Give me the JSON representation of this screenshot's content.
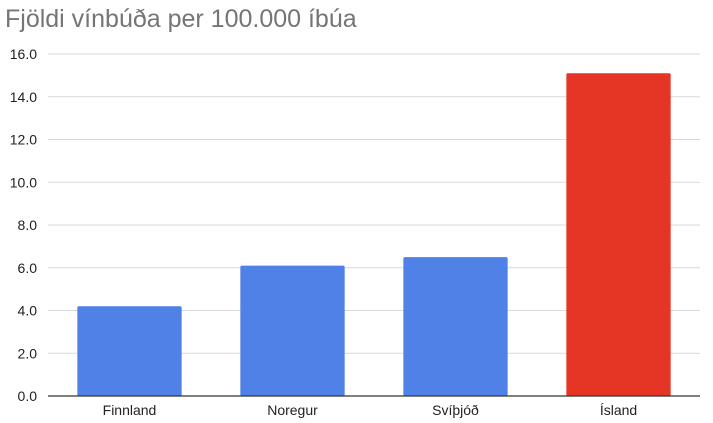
{
  "chart_data": {
    "type": "bar",
    "title": "Fjöldi vínbúða per 100.000 íbúa",
    "xlabel": "",
    "ylabel": "",
    "categories": [
      "Finnland",
      "Noregur",
      "Svíþjóð",
      "Ísland"
    ],
    "values": [
      4.2,
      6.1,
      6.5,
      15.1
    ],
    "colors": [
      "#4f81e7",
      "#4f81e7",
      "#4f81e7",
      "#e53524"
    ],
    "ylim": [
      0,
      16
    ],
    "yticks": [
      "0.0",
      "2.0",
      "4.0",
      "6.0",
      "8.0",
      "10.0",
      "12.0",
      "14.0",
      "16.0"
    ],
    "grid": true,
    "legend": "none"
  }
}
